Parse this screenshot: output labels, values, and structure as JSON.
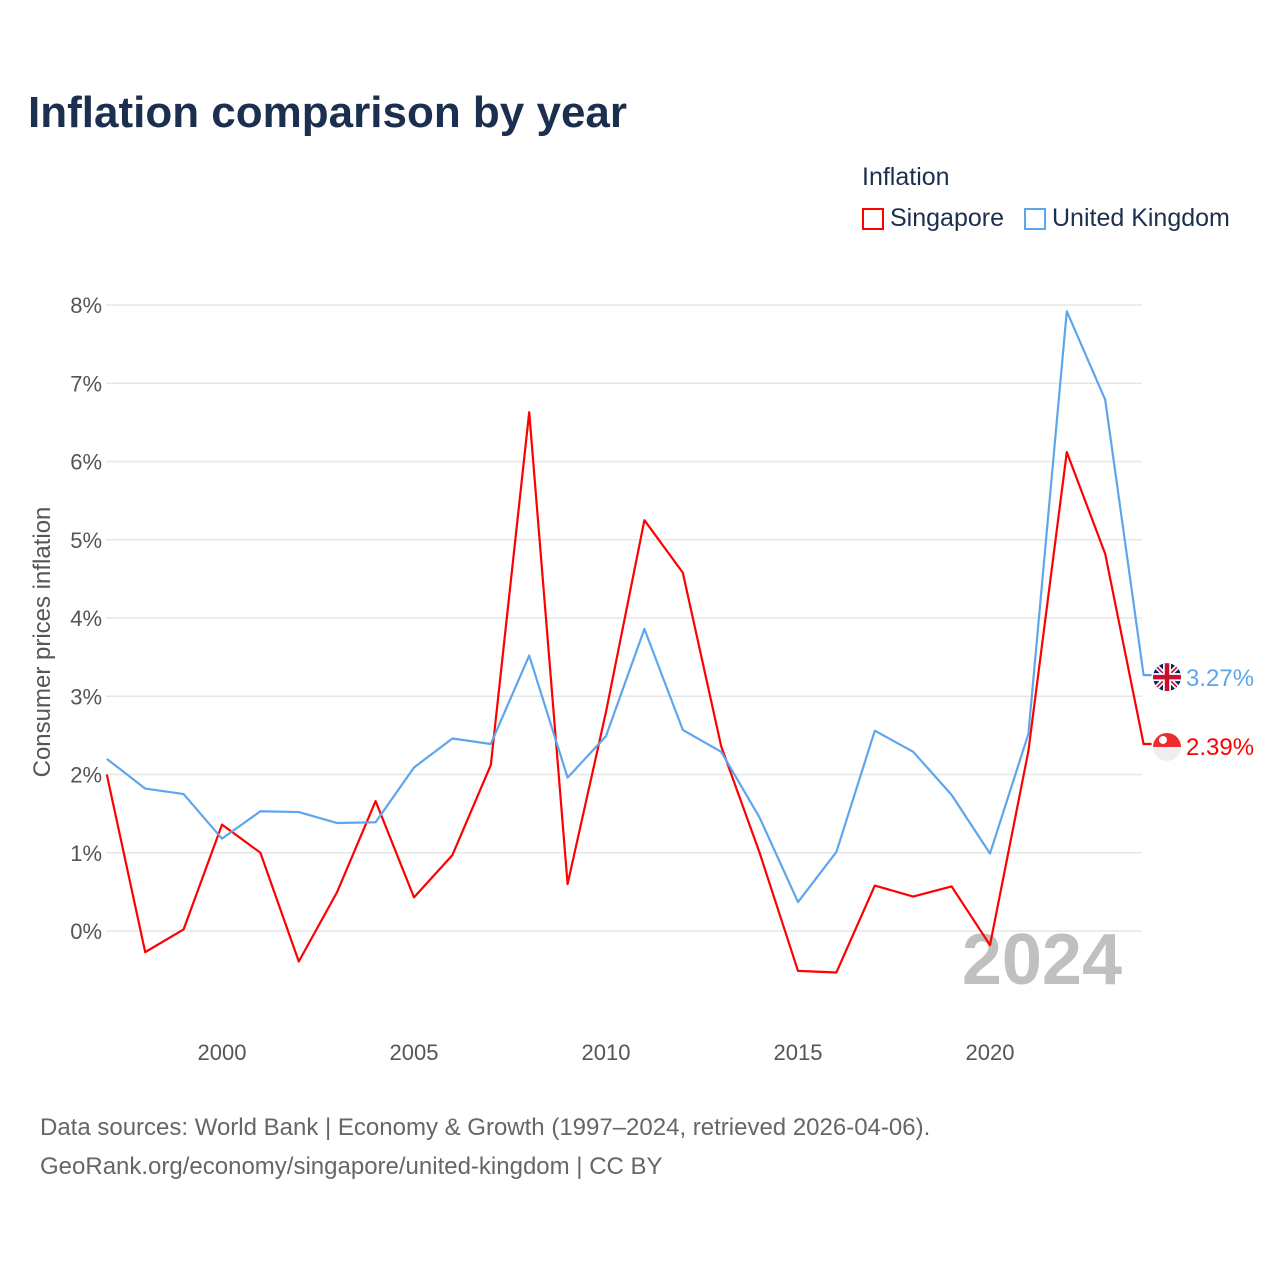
{
  "title": "Inflation comparison by year",
  "legend": {
    "title": "Inflation",
    "items": [
      {
        "label": "Singapore",
        "color": "#ff0000"
      },
      {
        "label": "United Kingdom",
        "color": "#5ea6ec"
      }
    ]
  },
  "footer": {
    "line1": "Data sources: World Bank | Economy & Growth (1997–2024, retrieved 2026-04-06).",
    "line2": "GeoRank.org/economy/singapore/united-kingdom | CC BY"
  },
  "chart_data": {
    "type": "line",
    "title": "Inflation comparison by year",
    "xlabel": "",
    "ylabel": "Consumer prices inflation",
    "year_watermark": "2024",
    "x": [
      1997,
      1998,
      1999,
      2000,
      2001,
      2002,
      2003,
      2004,
      2005,
      2006,
      2007,
      2008,
      2009,
      2010,
      2011,
      2012,
      2013,
      2014,
      2015,
      2016,
      2017,
      2018,
      2019,
      2020,
      2021,
      2022,
      2023,
      2024
    ],
    "xlim": [
      1997,
      2024
    ],
    "ylim": [
      -1.0,
      8.3
    ],
    "x_ticks": [
      2000,
      2005,
      2010,
      2015,
      2020
    ],
    "y_ticks": [
      0,
      1,
      2,
      3,
      4,
      5,
      6,
      7,
      8
    ],
    "y_tick_labels": [
      "0%",
      "1%",
      "2%",
      "3%",
      "4%",
      "5%",
      "6%",
      "7%",
      "8%"
    ],
    "grid": true,
    "legend_position": "top-right",
    "series": [
      {
        "name": "Singapore",
        "color": "#ff0000",
        "end_label": "2.39%",
        "values": [
          2.0,
          -0.27,
          0.02,
          1.36,
          1.0,
          -0.39,
          0.5,
          1.66,
          0.43,
          0.97,
          2.12,
          6.63,
          0.6,
          2.8,
          5.25,
          4.58,
          2.36,
          1.0,
          -0.51,
          -0.53,
          0.58,
          0.44,
          0.57,
          -0.18,
          2.3,
          6.12,
          4.82,
          2.39
        ]
      },
      {
        "name": "United Kingdom",
        "color": "#5ea6ec",
        "end_label": "3.27%",
        "values": [
          2.2,
          1.82,
          1.75,
          1.18,
          1.53,
          1.52,
          1.38,
          1.39,
          2.09,
          2.46,
          2.39,
          3.52,
          1.96,
          2.49,
          3.86,
          2.57,
          2.29,
          1.45,
          0.37,
          1.01,
          2.56,
          2.29,
          1.74,
          0.99,
          2.52,
          7.92,
          6.79,
          3.27
        ]
      }
    ]
  }
}
